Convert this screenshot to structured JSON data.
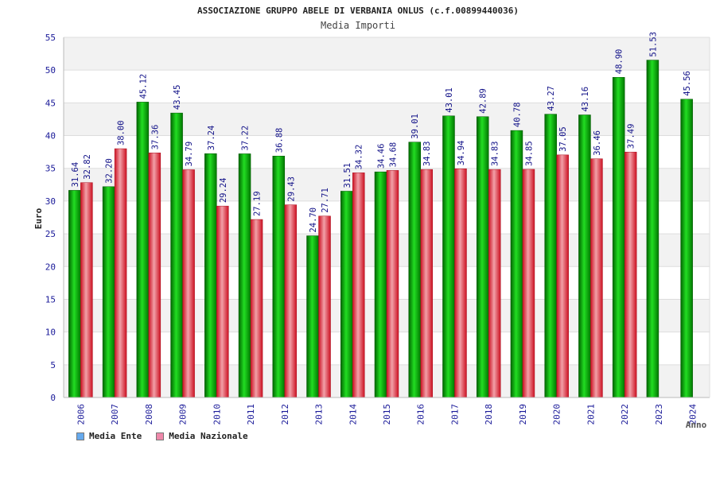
{
  "chart_data": {
    "type": "bar",
    "title": "ASSOCIAZIONE GRUPPO ABELE DI VERBANIA ONLUS (c.f.00899440036)",
    "subtitle": "Media Importi",
    "xlabel": "Anno",
    "ylabel": "Euro",
    "ylim": [
      0,
      55
    ],
    "yticks": [
      0,
      5,
      10,
      15,
      20,
      25,
      30,
      35,
      40,
      45,
      50,
      55
    ],
    "grid": true,
    "legend_position": "bottom-left",
    "categories": [
      "2006",
      "2007",
      "2008",
      "2009",
      "2010",
      "2011",
      "2012",
      "2013",
      "2014",
      "2015",
      "2016",
      "2017",
      "2018",
      "2019",
      "2020",
      "2021",
      "2022",
      "2023",
      "2024"
    ],
    "series": [
      {
        "name": "Media Ente",
        "color": "#11aa11",
        "legend_color": "#66aaee",
        "values": [
          31.64,
          32.2,
          45.12,
          43.45,
          37.24,
          37.22,
          36.88,
          24.7,
          31.51,
          34.46,
          39.01,
          43.01,
          42.89,
          40.78,
          43.27,
          43.16,
          48.9,
          51.53,
          45.56
        ],
        "labels": [
          "31.64",
          "32.20",
          "45.12",
          "43.45",
          "37.24",
          "37.22",
          "36.88",
          "24.70",
          "31.51",
          "34.46",
          "39.01",
          "43.01",
          "42.89",
          "40.78",
          "43.27",
          "43.16",
          "48.90",
          "51.53",
          "45.56"
        ]
      },
      {
        "name": "Media Nazionale",
        "color": "#dd2233",
        "legend_color": "#ee88aa",
        "values": [
          32.82,
          38.0,
          37.36,
          34.79,
          29.24,
          27.19,
          29.43,
          27.71,
          34.32,
          34.68,
          34.83,
          34.94,
          34.83,
          34.85,
          37.05,
          36.46,
          37.49,
          null,
          null
        ],
        "labels": [
          "32.82",
          "38.00",
          "37.36",
          "34.79",
          "29.24",
          "27.19",
          "29.43",
          "27.71",
          "34.32",
          "34.68",
          "34.83",
          "34.94",
          "34.83",
          "34.85",
          "37.05",
          "36.46",
          "37.49",
          "",
          ""
        ]
      }
    ]
  }
}
